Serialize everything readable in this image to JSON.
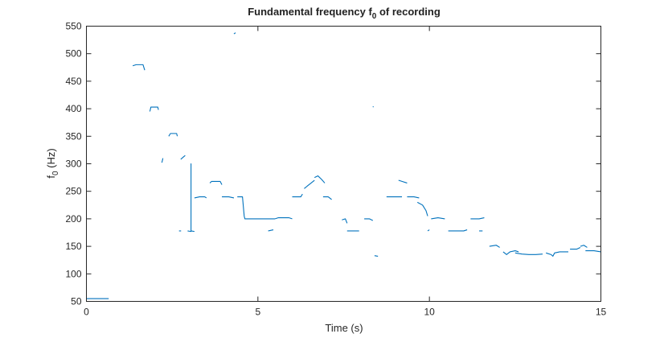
{
  "chart_data": {
    "type": "line",
    "title_main": "Fundamental frequency f",
    "title_sub": "0",
    "title_tail": " of recording",
    "xlabel": "Time (s)",
    "ylabel_main": "f",
    "ylabel_sub": "0",
    "ylabel_tail": " (Hz)",
    "xlim": [
      0,
      15
    ],
    "ylim": [
      50,
      550
    ],
    "xticks": [
      0,
      5,
      10,
      15
    ],
    "yticks": [
      50,
      100,
      150,
      200,
      250,
      300,
      350,
      400,
      450,
      500,
      550
    ],
    "grid": false,
    "line_color": "#0072BD",
    "series": [
      {
        "segments": [
          [
            [
              0.0,
              55
            ],
            [
              0.65,
              55
            ]
          ],
          [
            [
              1.35,
              478
            ],
            [
              1.45,
              480
            ],
            [
              1.65,
              480
            ],
            [
              1.7,
              470
            ]
          ],
          [
            [
              1.85,
              395
            ],
            [
              1.88,
              403
            ],
            [
              2.08,
              403
            ],
            [
              2.1,
              398
            ]
          ],
          [
            [
              2.2,
              302
            ],
            [
              2.23,
              310
            ]
          ],
          [
            [
              2.4,
              350
            ],
            [
              2.45,
              355
            ],
            [
              2.63,
              355
            ],
            [
              2.65,
              350
            ]
          ],
          [
            [
              2.75,
              308
            ],
            [
              2.82,
              312
            ],
            [
              2.88,
              315
            ]
          ],
          [
            [
              2.7,
              178
            ],
            [
              2.76,
              178
            ]
          ],
          [
            [
              2.95,
              178
            ],
            [
              3.05,
              177
            ],
            [
              3.05,
              300
            ],
            [
              3.05,
              178
            ],
            [
              3.15,
              177
            ]
          ],
          [
            [
              3.15,
              238
            ],
            [
              3.3,
              240
            ],
            [
              3.45,
              240
            ],
            [
              3.5,
              238
            ]
          ],
          [
            [
              3.6,
              265
            ],
            [
              3.65,
              268
            ],
            [
              3.9,
              268
            ],
            [
              3.95,
              262
            ]
          ],
          [
            [
              3.95,
              240
            ],
            [
              4.15,
              240
            ],
            [
              4.3,
              238
            ]
          ],
          [
            [
              4.3,
              536
            ],
            [
              4.35,
              538
            ]
          ],
          [
            [
              4.4,
              240
            ],
            [
              4.55,
              240
            ],
            [
              4.6,
              205
            ],
            [
              4.62,
              200
            ],
            [
              5.5,
              200
            ]
          ],
          [
            [
              5.3,
              178
            ],
            [
              5.45,
              180
            ]
          ],
          [
            [
              5.5,
              200
            ],
            [
              5.6,
              202
            ],
            [
              5.9,
              202
            ],
            [
              6.0,
              200
            ]
          ],
          [
            [
              6.0,
              240
            ],
            [
              6.25,
              240
            ],
            [
              6.3,
              245
            ]
          ],
          [
            [
              6.35,
              255
            ],
            [
              6.45,
              260
            ],
            [
              6.55,
              265
            ],
            [
              6.65,
              270
            ]
          ],
          [
            [
              6.65,
              275
            ],
            [
              6.75,
              278
            ],
            [
              6.85,
              272
            ],
            [
              6.95,
              265
            ]
          ],
          [
            [
              6.9,
              240
            ],
            [
              7.05,
              240
            ],
            [
              7.15,
              235
            ]
          ],
          [
            [
              7.45,
              198
            ],
            [
              7.55,
              200
            ],
            [
              7.6,
              192
            ]
          ],
          [
            [
              7.6,
              178
            ],
            [
              7.75,
              178
            ],
            [
              7.95,
              178
            ]
          ],
          [
            [
              8.1,
              200
            ],
            [
              8.25,
              200
            ],
            [
              8.35,
              197
            ]
          ],
          [
            [
              8.35,
              403
            ],
            [
              8.37,
              404
            ]
          ],
          [
            [
              8.4,
              133
            ],
            [
              8.5,
              132
            ]
          ],
          [
            [
              8.75,
              240
            ],
            [
              9.0,
              240
            ],
            [
              9.2,
              240
            ]
          ],
          [
            [
              9.1,
              270
            ],
            [
              9.2,
              268
            ],
            [
              9.35,
              265
            ]
          ],
          [
            [
              9.35,
              240
            ],
            [
              9.55,
              240
            ],
            [
              9.7,
              238
            ]
          ],
          [
            [
              9.65,
              230
            ],
            [
              9.8,
              225
            ],
            [
              9.9,
              215
            ],
            [
              9.95,
              205
            ]
          ],
          [
            [
              9.95,
              178
            ],
            [
              10.0,
              180
            ]
          ],
          [
            [
              10.05,
              200
            ],
            [
              10.25,
              202
            ],
            [
              10.45,
              200
            ]
          ],
          [
            [
              10.55,
              178
            ],
            [
              11.0,
              178
            ],
            [
              11.1,
              180
            ]
          ],
          [
            [
              11.2,
              200
            ],
            [
              11.45,
              200
            ],
            [
              11.6,
              202
            ]
          ],
          [
            [
              11.45,
              178
            ],
            [
              11.55,
              178
            ]
          ],
          [
            [
              11.75,
              150
            ],
            [
              11.95,
              152
            ],
            [
              12.05,
              148
            ]
          ],
          [
            [
              12.15,
              140
            ],
            [
              12.25,
              135
            ],
            [
              12.35,
              140
            ],
            [
              12.5,
              142
            ],
            [
              12.6,
              140
            ]
          ],
          [
            [
              12.5,
              138
            ],
            [
              12.7,
              136
            ],
            [
              12.9,
              135
            ],
            [
              13.1,
              135
            ],
            [
              13.3,
              136
            ]
          ],
          [
            [
              13.4,
              138
            ],
            [
              13.55,
              135
            ],
            [
              13.6,
              132
            ],
            [
              13.65,
              138
            ],
            [
              13.8,
              140
            ],
            [
              14.05,
              140
            ]
          ],
          [
            [
              14.1,
              145
            ],
            [
              14.3,
              145
            ],
            [
              14.4,
              148
            ]
          ],
          [
            [
              14.4,
              150
            ],
            [
              14.5,
              152
            ],
            [
              14.6,
              148
            ]
          ],
          [
            [
              14.55,
              142
            ],
            [
              14.8,
              142
            ],
            [
              15.0,
              140
            ]
          ]
        ]
      }
    ]
  }
}
